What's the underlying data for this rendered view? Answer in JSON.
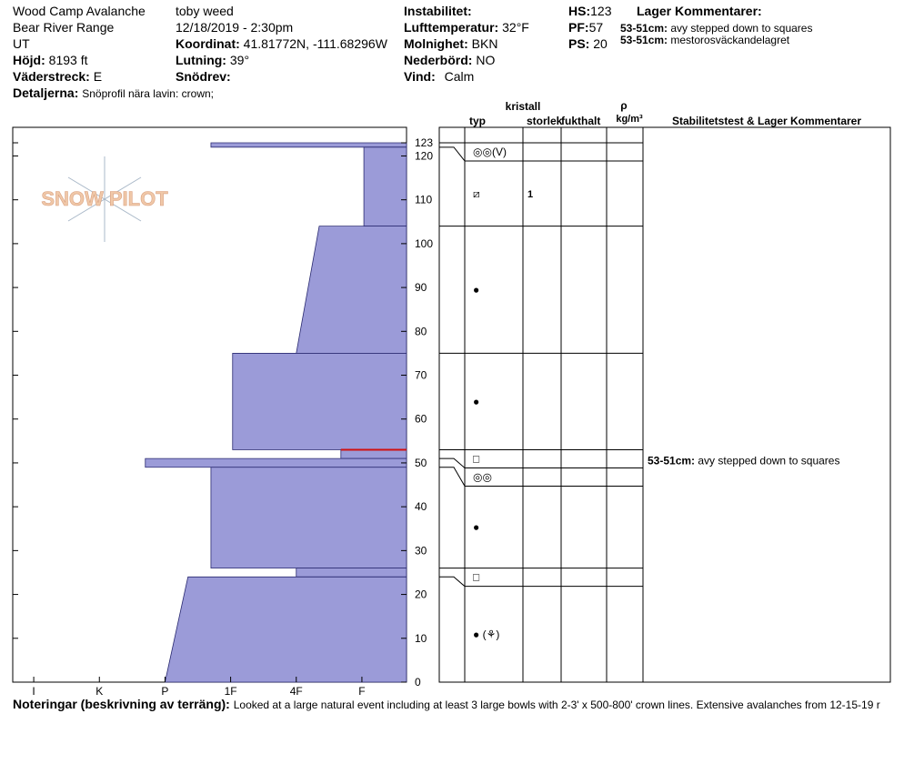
{
  "header": {
    "location": "Wood Camp Avalanche",
    "range": "Bear River Range",
    "state": "UT",
    "elevation": {
      "label": "Höjd:",
      "value": "8193 ft"
    },
    "aspect": {
      "label": "Väderstreck:",
      "value": "E"
    },
    "details": {
      "label": "Detaljerna:",
      "value": "Snöprofil nära lavin: crown;"
    },
    "observer": "toby weed",
    "datetime": "12/18/2019 - 2:30pm",
    "coordinates": {
      "label": "Koordinat:",
      "value": "41.81772N, -111.68296W"
    },
    "slope": {
      "label": "Lutning:",
      "value": "39°"
    },
    "wind_loading": {
      "label": "Snödrev:"
    },
    "instability": {
      "label": "Instabilitet:"
    },
    "air_temp": {
      "label": "Lufttemperatur:",
      "value": "32°F"
    },
    "sky": {
      "label": "Molnighet:",
      "value": "BKN"
    },
    "precip": {
      "label": "Nederbörd:",
      "value": "NO"
    },
    "wind": {
      "label": "Vind:",
      "value": "Calm"
    },
    "hs": {
      "label": "HS:",
      "value": 123
    },
    "pf": {
      "label": "PF:",
      "value": 57
    },
    "ps": {
      "label": "PS:",
      "value": 20
    },
    "layer_comments": {
      "title": "Lager Kommentarer:",
      "items": [
        {
          "label": "53-51cm:",
          "text": "avy stepped down to squares"
        },
        {
          "label": "53-51cm:",
          "text": "mestorosväckandelagret"
        }
      ]
    }
  },
  "logo": "SNOW PILOT",
  "chart_data": {
    "type": "bar",
    "xlim": [
      6.32,
      0.32
    ],
    "xticks": [
      {
        "value": 6,
        "label": "I"
      },
      {
        "value": 5,
        "label": "K"
      },
      {
        "value": 4,
        "label": "P"
      },
      {
        "value": 3,
        "label": "1F"
      },
      {
        "value": 2,
        "label": "4F"
      },
      {
        "value": 1,
        "label": "F"
      }
    ],
    "ylim": [
      0,
      123
    ],
    "yticks": [
      0,
      10,
      20,
      30,
      40,
      50,
      60,
      70,
      80,
      90,
      100,
      110,
      120,
      123
    ],
    "color": "#9b9bd8",
    "columns": {
      "type": "typ",
      "crystal": "kristall",
      "size": "storlek",
      "moisture": "fukthalt",
      "density": "ρ",
      "density_unit": "kg/m³",
      "comments": "Stabilitetstest & Lager Kommentarer"
    },
    "layers": [
      {
        "top": 123,
        "bottom": 122,
        "hardness_top": 3.3,
        "hardness_bottom": 3.3,
        "grain": "◎◎(V)"
      },
      {
        "top": 122,
        "bottom": 104,
        "hardness_top": 0.97,
        "hardness_bottom": 0.97,
        "grain": "⧄",
        "size": 1
      },
      {
        "top": 104,
        "bottom": 75,
        "hardness_top": 1.65,
        "hardness_bottom": 2.0,
        "grain": "●"
      },
      {
        "top": 75,
        "bottom": 53,
        "hardness_top": 2.97,
        "hardness_bottom": 2.97,
        "grain": "●"
      },
      {
        "top": 53,
        "bottom": 51,
        "hardness_top": 1.32,
        "hardness_bottom": 1.32,
        "grain": "□",
        "comment": {
          "label": "53-51cm:",
          "text": "avy stepped down to squares"
        }
      },
      {
        "top": 51,
        "bottom": 49,
        "hardness_top": 4.3,
        "hardness_bottom": 4.3,
        "grain": "◎◎"
      },
      {
        "top": 49,
        "bottom": 26,
        "hardness_top": 3.3,
        "hardness_bottom": 3.3,
        "grain": "●"
      },
      {
        "top": 26,
        "bottom": 24,
        "hardness_top": 2.0,
        "hardness_bottom": 2.0,
        "grain": "□"
      },
      {
        "top": 24,
        "bottom": 0,
        "hardness_top": 3.65,
        "hardness_bottom": 4.0,
        "grain": "● (⚘)"
      }
    ]
  },
  "footer": {
    "label": "Noteringar (beskrivning av terräng):",
    "text": "Looked at a large natural event including at least 3 large bowls with 2-3' x 500-800' crown lines.  Extensive avalanches from 12-15-19 r"
  }
}
